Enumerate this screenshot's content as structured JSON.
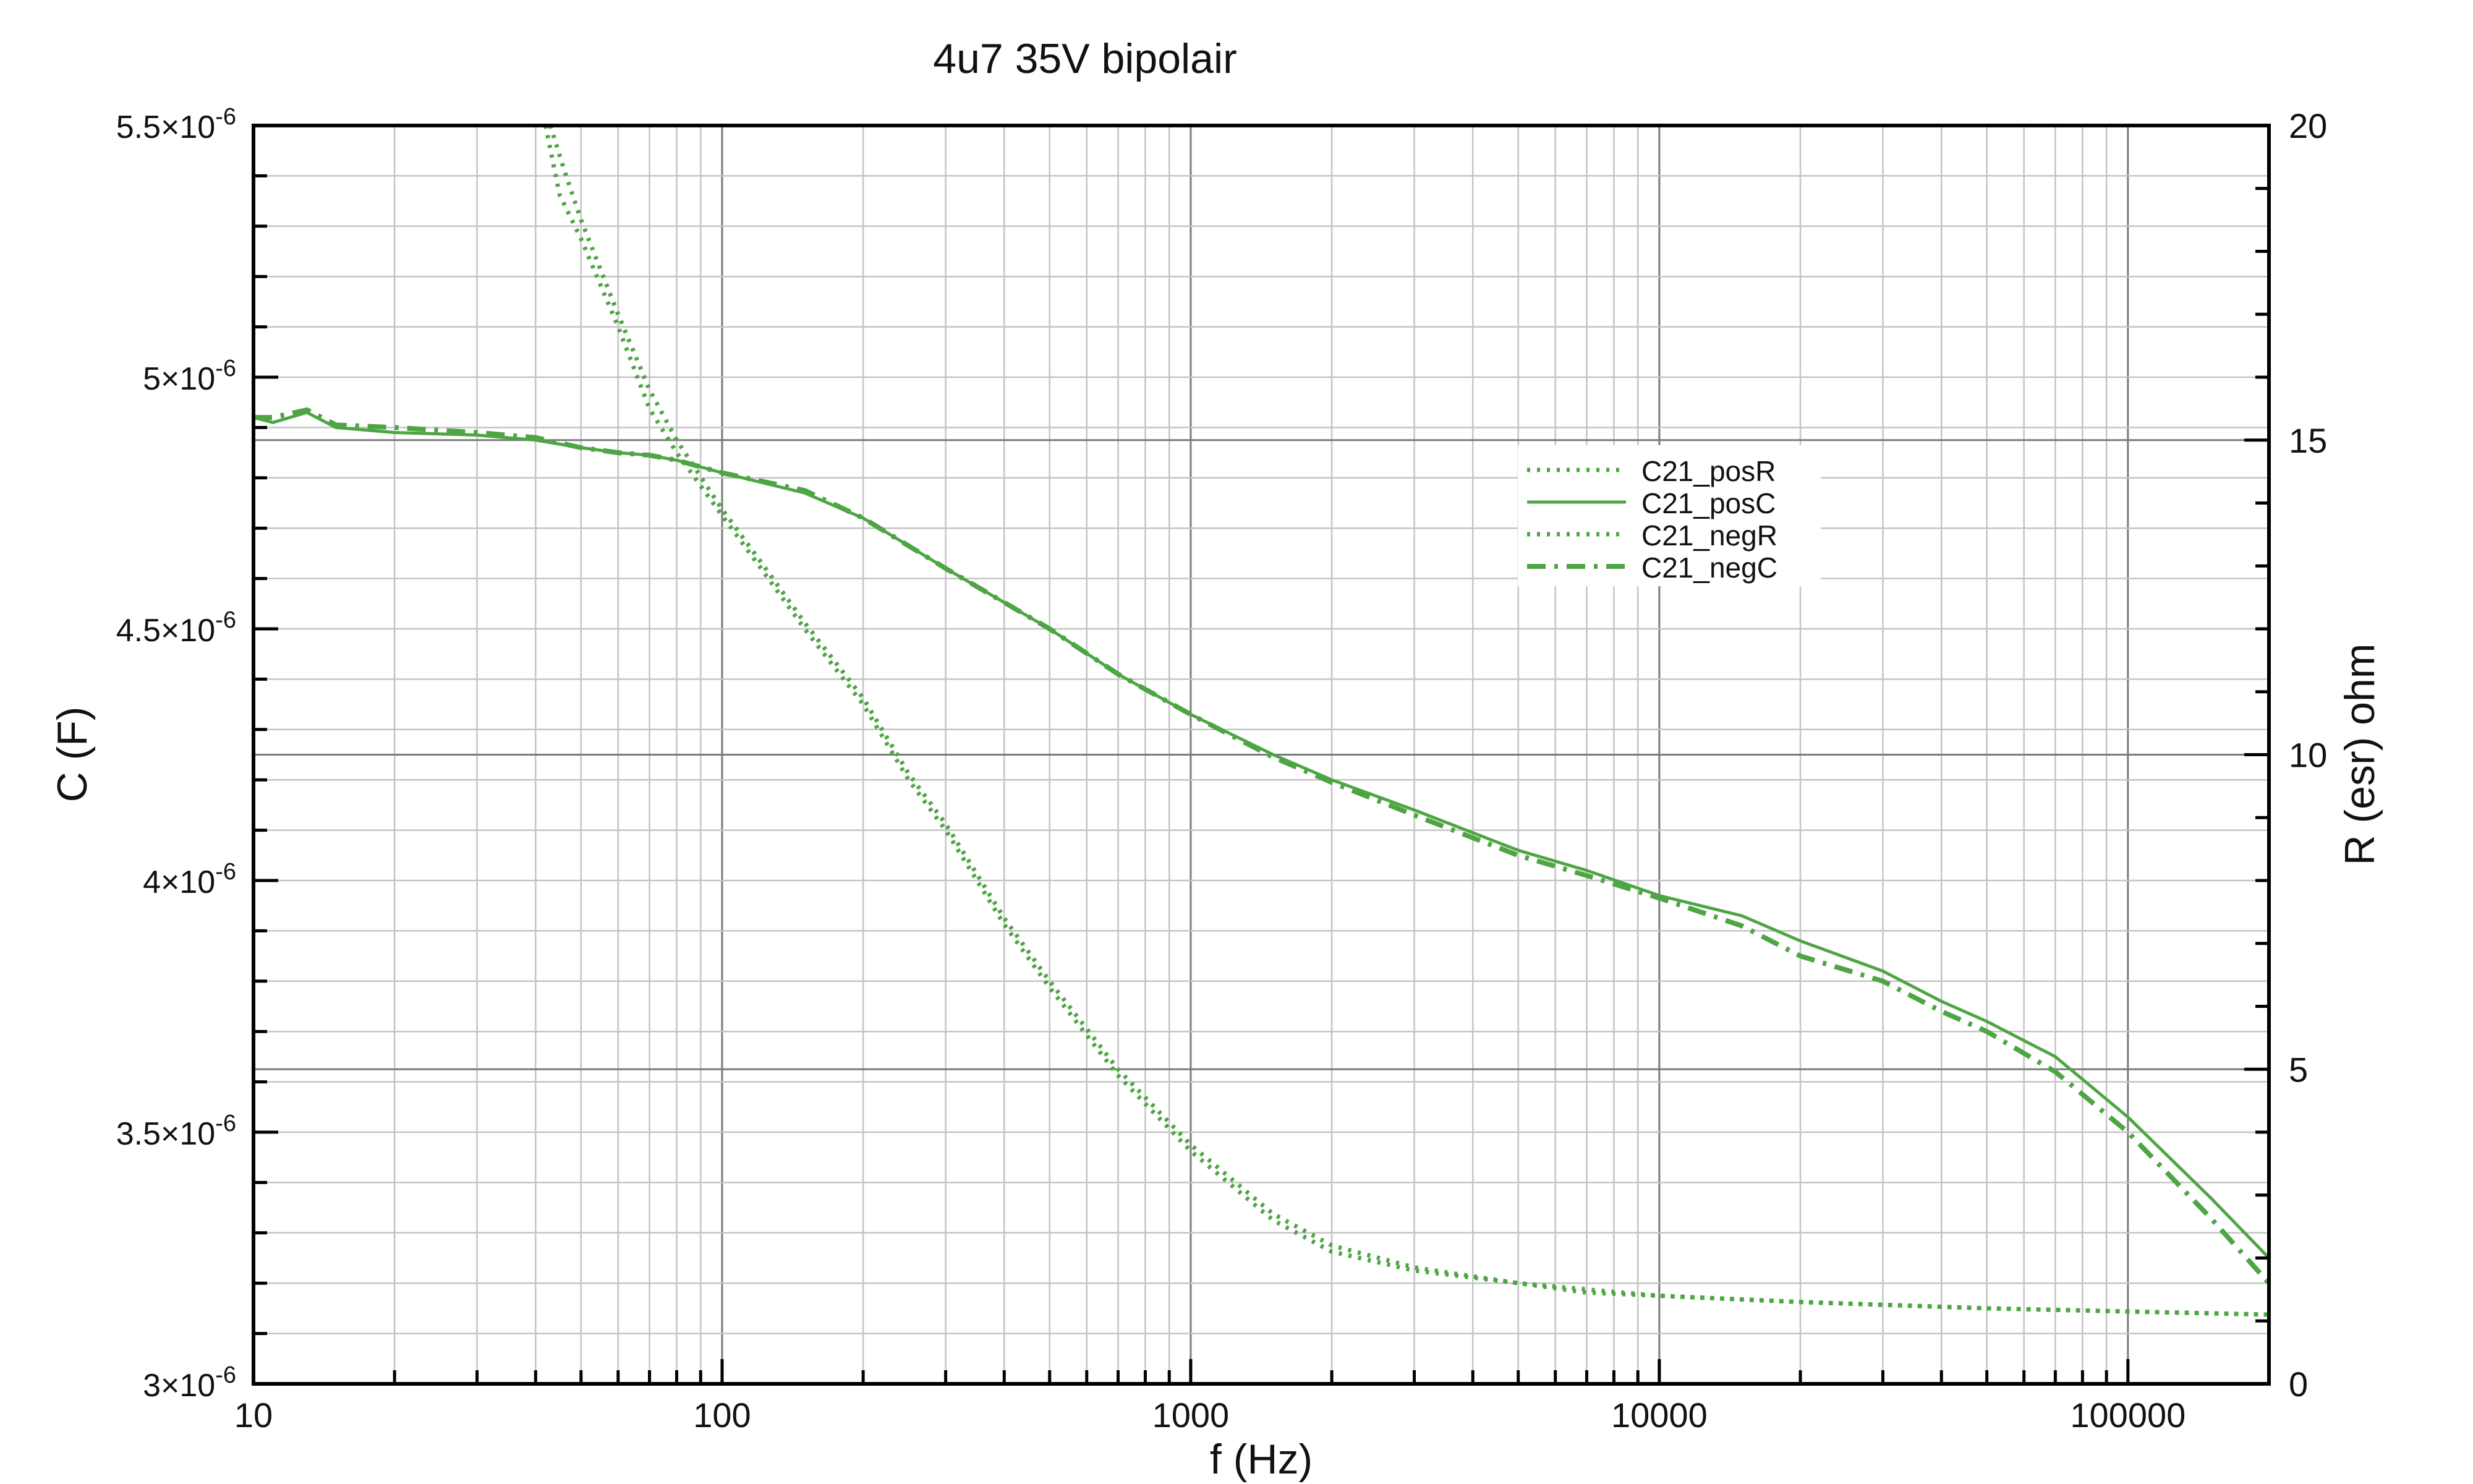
{
  "chart_data": {
    "type": "line",
    "title": "4u7 35V bipolair",
    "xlabel": "f (Hz)",
    "ylabel_left": "C (F)",
    "ylabel_right": "R (esr) ohm",
    "x_scale": "log",
    "xlim": [
      10,
      200000
    ],
    "ylim_left": [
      3e-06,
      5.5e-06
    ],
    "ylim_right": [
      0,
      20
    ],
    "grid": true,
    "legend_position": "center-right",
    "x_ticks": [
      10,
      100,
      1000,
      10000,
      100000
    ],
    "x_tick_labels": [
      "10",
      "100",
      "1000",
      "10000",
      "100000"
    ],
    "y_left_ticks": [
      3e-06,
      3.5e-06,
      4e-06,
      4.5e-06,
      5e-06,
      5.5e-06
    ],
    "y_left_tick_labels": [
      {
        "mantissa": "3×10",
        "exp": "-6"
      },
      {
        "mantissa": "3.5×10",
        "exp": "-6"
      },
      {
        "mantissa": "4×10",
        "exp": "-6"
      },
      {
        "mantissa": "4.5×10",
        "exp": "-6"
      },
      {
        "mantissa": "5×10",
        "exp": "-6"
      },
      {
        "mantissa": "5.5×10",
        "exp": "-6"
      }
    ],
    "y_right_ticks": [
      0,
      5,
      10,
      15,
      20
    ],
    "y_right_tick_labels": [
      "0",
      "5",
      "10",
      "15",
      "20"
    ],
    "color": "#4ea544",
    "series": [
      {
        "name": "C21_posR",
        "axis": "right",
        "style": "dotted",
        "x": [
          42,
          45,
          50,
          60,
          70,
          80,
          100,
          120,
          150,
          200,
          250,
          300,
          400,
          500,
          700,
          1000,
          1500,
          2000,
          3000,
          5000,
          7000,
          10000,
          20000,
          50000,
          100000,
          200000
        ],
        "y": [
          20,
          18.9,
          18.2,
          16.8,
          15.5,
          14.8,
          13.8,
          13.0,
          12.0,
          10.8,
          9.6,
          8.8,
          7.3,
          6.3,
          4.9,
          3.7,
          2.6,
          2.1,
          1.8,
          1.6,
          1.45,
          1.4,
          1.3,
          1.2,
          1.15,
          1.1
        ]
      },
      {
        "name": "C21_posC",
        "axis": "left",
        "style": "solid",
        "x": [
          10,
          11,
          13,
          15,
          20,
          30,
          40,
          50,
          60,
          70,
          80,
          100,
          150,
          200,
          300,
          500,
          700,
          1000,
          1500,
          2000,
          3000,
          5000,
          7000,
          10000,
          15000,
          20000,
          30000,
          40000,
          50000,
          70000,
          100000,
          150000,
          200000
        ],
        "y": [
          4.92e-06,
          4.91e-06,
          4.93e-06,
          4.9e-06,
          4.89e-06,
          4.885e-06,
          4.875e-06,
          4.86e-06,
          4.85e-06,
          4.845e-06,
          4.835e-06,
          4.81e-06,
          4.77e-06,
          4.72e-06,
          4.62e-06,
          4.5e-06,
          4.41e-06,
          4.33e-06,
          4.25e-06,
          4.2e-06,
          4.14e-06,
          4.06e-06,
          4.02e-06,
          3.97e-06,
          3.93e-06,
          3.88e-06,
          3.82e-06,
          3.76e-06,
          3.72e-06,
          3.65e-06,
          3.53e-06,
          3.37e-06,
          3.25e-06
        ]
      },
      {
        "name": "C21_negR",
        "axis": "right",
        "style": "dotted",
        "x": [
          43,
          46,
          50,
          60,
          70,
          80,
          100,
          120,
          150,
          200,
          250,
          300,
          400,
          500,
          700,
          1000,
          1500,
          2000,
          3000,
          5000,
          7000,
          10000,
          20000,
          50000,
          100000,
          200000
        ],
        "y": [
          20,
          19.3,
          18.5,
          17.0,
          15.8,
          15.0,
          13.9,
          13.1,
          12.1,
          10.9,
          9.7,
          8.9,
          7.4,
          6.4,
          5.0,
          3.8,
          2.7,
          2.2,
          1.85,
          1.6,
          1.5,
          1.4,
          1.3,
          1.2,
          1.15,
          1.1
        ]
      },
      {
        "name": "C21_negC",
        "axis": "left",
        "style": "dashdot",
        "x": [
          10,
          11,
          13,
          15,
          20,
          30,
          40,
          50,
          60,
          70,
          80,
          100,
          150,
          200,
          300,
          500,
          700,
          1000,
          1500,
          2000,
          3000,
          5000,
          7000,
          10000,
          15000,
          20000,
          30000,
          40000,
          50000,
          70000,
          100000,
          150000,
          200000
        ],
        "y": [
          4.92e-06,
          4.92e-06,
          4.935e-06,
          4.905e-06,
          4.9e-06,
          4.89e-06,
          4.88e-06,
          4.86e-06,
          4.85e-06,
          4.845e-06,
          4.835e-06,
          4.81e-06,
          4.775e-06,
          4.72e-06,
          4.62e-06,
          4.5e-06,
          4.41e-06,
          4.33e-06,
          4.245e-06,
          4.195e-06,
          4.13e-06,
          4.05e-06,
          4.01e-06,
          3.965e-06,
          3.91e-06,
          3.85e-06,
          3.8e-06,
          3.74e-06,
          3.7e-06,
          3.62e-06,
          3.5e-06,
          3.33e-06,
          3.2e-06
        ]
      }
    ]
  }
}
